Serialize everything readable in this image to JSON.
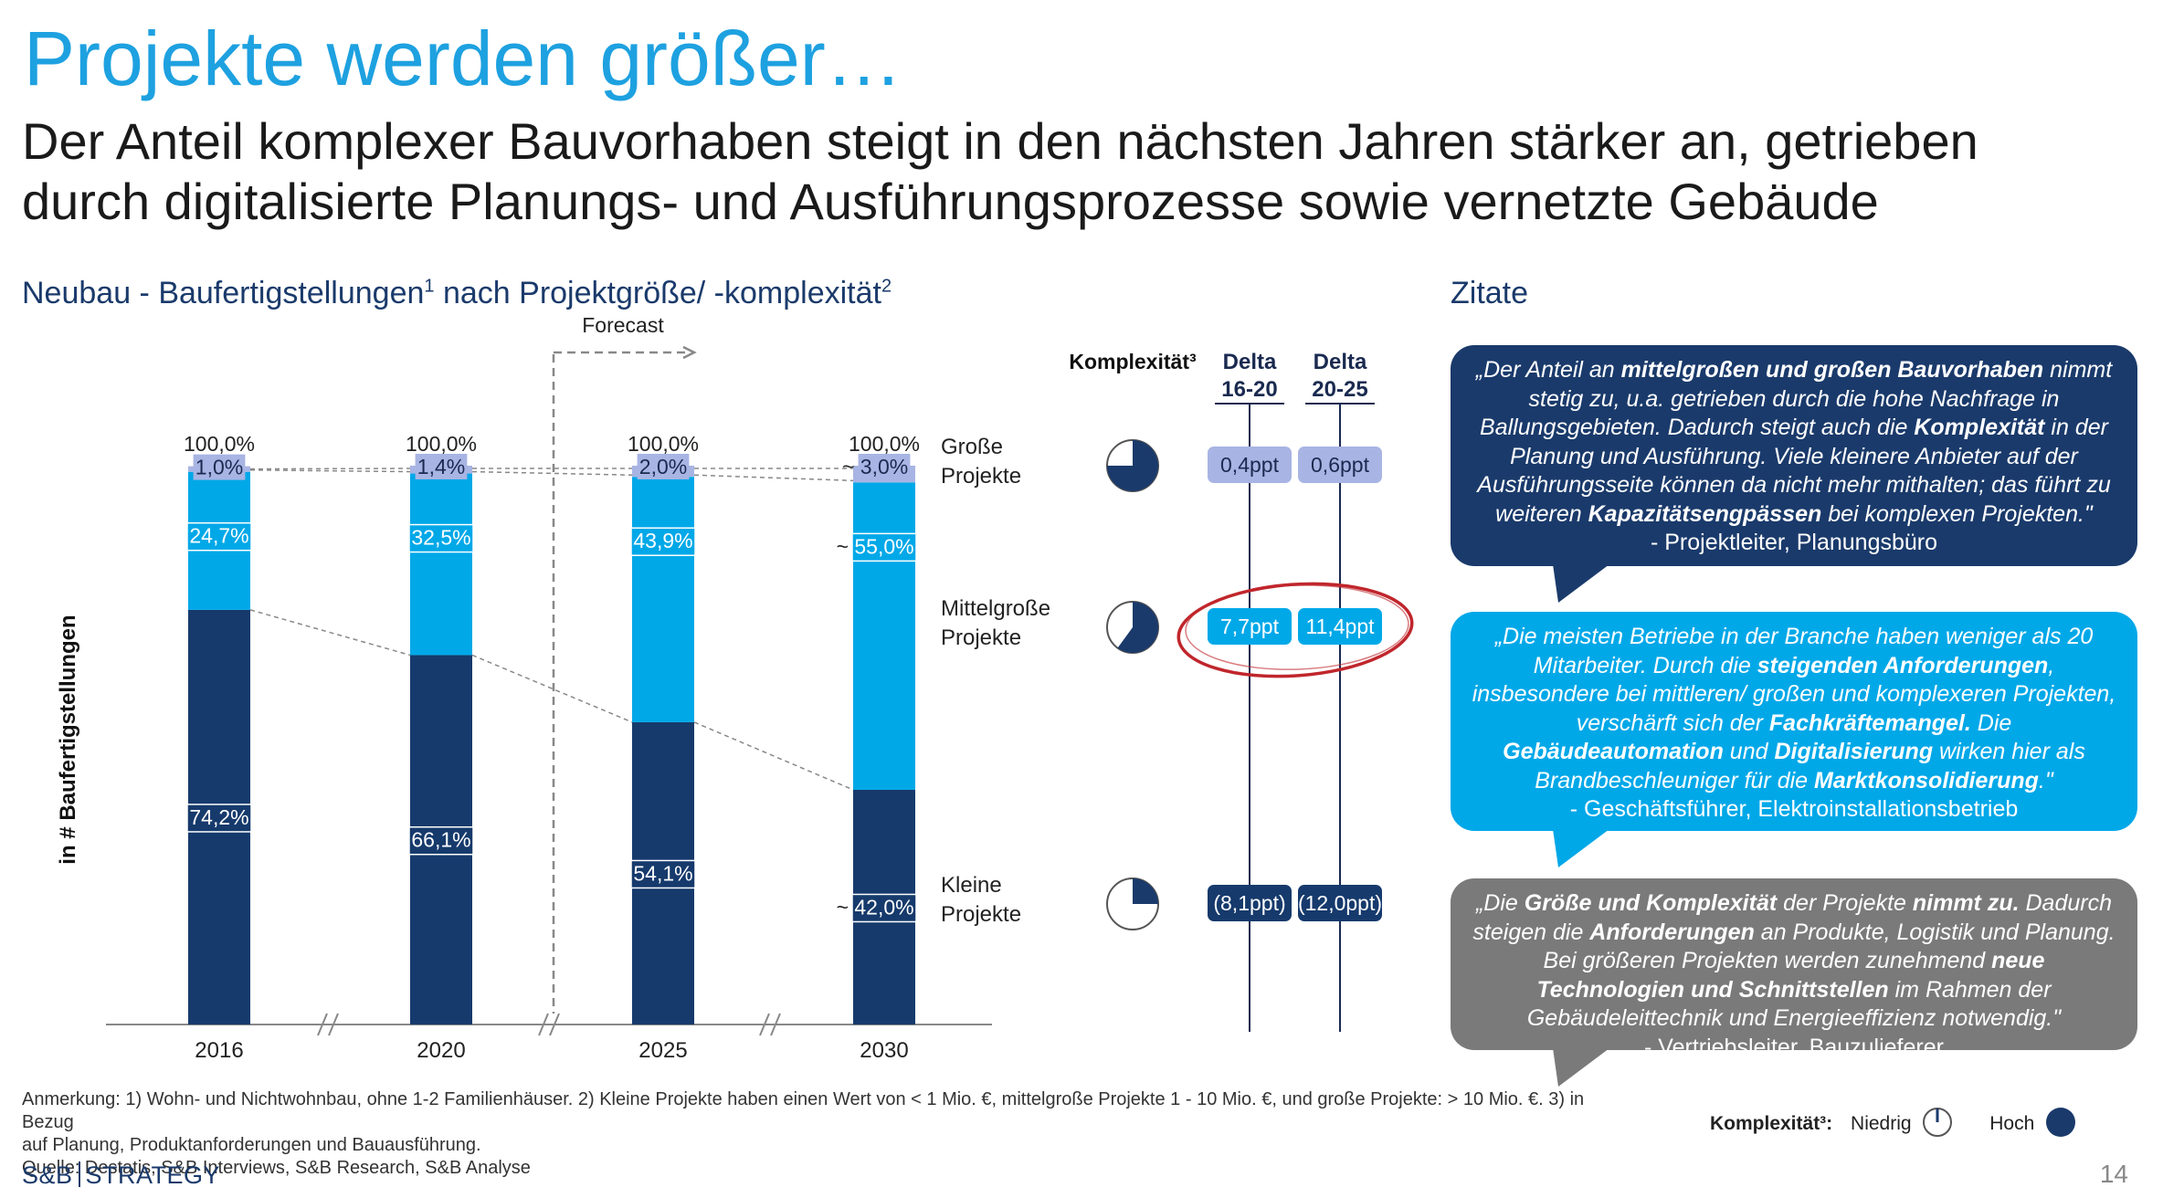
{
  "header": {
    "title": "Projekte werden größer…",
    "subtitle_line1": "Der Anteil komplexer Bauvorhaben steigt in den nächsten Jahren stärker an, getrieben",
    "subtitle_line2": "durch digitalisierte Planungs- und Ausführungsprozesse sowie vernetzte Gebäude"
  },
  "chart_section": {
    "title": "Neubau - Baufertigstellungen",
    "title_sup1": "1",
    "title_mid": " nach Projektgröße/ -komplexität",
    "title_sup2": "2"
  },
  "chart_data": {
    "type": "bar",
    "stacked": true,
    "categories": [
      "2016",
      "2020",
      "2025",
      "2030"
    ],
    "totals": [
      "100,0%",
      "100,0%",
      "100,0%",
      "100,0%"
    ],
    "ylabel": "in # Baufertigstellungen",
    "forecast_label": "Forecast",
    "series": [
      {
        "name": "Kleine Projekte",
        "values": [
          74.2,
          66.1,
          54.1,
          42.0
        ],
        "labels": [
          "74,2%",
          "66,1%",
          "54,1%",
          "~42,0%"
        ],
        "color": "#163a6c"
      },
      {
        "name": "Mittelgroße Projekte",
        "values": [
          24.7,
          32.5,
          43.9,
          55.0
        ],
        "labels": [
          "24,7%",
          "32,5%",
          "43,9%",
          "~55,0%"
        ],
        "color": "#00a8e8"
      },
      {
        "name": "Große Projekte",
        "values": [
          1.0,
          1.4,
          2.0,
          3.0
        ],
        "labels": [
          "1,0%",
          "1,4%",
          "2,0%",
          "~3,0%"
        ],
        "color": "#a8b4e3"
      }
    ],
    "series_labels": [
      {
        "line1": "Große",
        "line2": "Projekte"
      },
      {
        "line1": "Mittelgroße",
        "line2": "Projekte"
      },
      {
        "line1": "Kleine",
        "line2": "Projekte"
      }
    ],
    "complexity_header": "Komplexität³",
    "complexity_fraction": [
      0.75,
      0.6,
      0.25
    ],
    "delta_headers": [
      {
        "line1": "Delta",
        "line2": "16-20"
      },
      {
        "line1": "Delta",
        "line2": "20-25"
      }
    ],
    "deltas": [
      {
        "d1": "0,4ppt",
        "d2": "0,6ppt"
      },
      {
        "d1": "7,7ppt",
        "d2": "11,4ppt"
      },
      {
        "d1": "(8,1ppt)",
        "d2": "(12,0ppt)"
      }
    ]
  },
  "quotes_section": {
    "title": "Zitate"
  },
  "quotes": [
    {
      "segments": [
        {
          "t": "„Der Anteil an ",
          "b": false
        },
        {
          "t": "mittelgroßen und großen Bauvorhaben",
          "b": true
        },
        {
          "t": " nimmt stetig zu, u.a. getrieben durch die hohe Nachfrage in Ballungsgebieten. Dadurch steigt auch die ",
          "b": false
        },
        {
          "t": "Komplexität",
          "b": true
        },
        {
          "t": " in der Planung und Ausführung. Viele kleinere Anbieter auf der Ausführungsseite können da nicht mehr mithalten; das führt zu weiteren ",
          "b": false
        },
        {
          "t": "Kapazitätsengpässen",
          "b": true
        },
        {
          "t": " bei komplexen Projekten.\"",
          "b": false
        }
      ],
      "source": "- Projektleiter, Planungsbüro",
      "color": "#1a3a6b"
    },
    {
      "segments": [
        {
          "t": "„Die meisten Betriebe in der Branche haben weniger als 20 Mitarbeiter. Durch die ",
          "b": false
        },
        {
          "t": "steigenden Anforderungen",
          "b": true
        },
        {
          "t": ", insbesondere bei mittleren/ großen und komplexeren Projekten, verschärft sich der ",
          "b": false
        },
        {
          "t": "Fachkräftemangel.",
          "b": true
        },
        {
          "t": " Die ",
          "b": false
        },
        {
          "t": "Gebäudeautomation",
          "b": true
        },
        {
          "t": " und ",
          "b": false
        },
        {
          "t": "Digitalisierung",
          "b": true
        },
        {
          "t": " wirken hier als Brandbeschleuniger für die ",
          "b": false
        },
        {
          "t": "Marktkonsolidierung",
          "b": true
        },
        {
          "t": ".\"",
          "b": false
        }
      ],
      "source": "- Geschäftsführer, Elektroinstallationsbetrieb",
      "color": "#00a8e8"
    },
    {
      "segments": [
        {
          "t": "„Die ",
          "b": false
        },
        {
          "t": "Größe und Komplexität",
          "b": true
        },
        {
          "t": " der Projekte ",
          "b": false
        },
        {
          "t": "nimmt zu.",
          "b": true
        },
        {
          "t": " Dadurch steigen die ",
          "b": false
        },
        {
          "t": "Anforderungen",
          "b": true
        },
        {
          "t": " an Produkte, Logistik und Planung. Bei größeren Projekten werden zunehmend ",
          "b": false
        },
        {
          "t": "neue Technologien und Schnittstellen",
          "b": true
        },
        {
          "t": " im Rahmen der Gebäudeleittechnik und Energieeffizienz notwendig.\"",
          "b": false
        }
      ],
      "source": "- Vertriebsleiter, Bauzulieferer",
      "color": "#7a7a7a"
    }
  ],
  "legend": {
    "label": "Komplexität³:",
    "low": "Niedrig",
    "high": "Hoch"
  },
  "footnotes": {
    "line1": "Anmerkung: 1) Wohn- und Nichtwohnbau, ohne 1-2 Familienhäuser. 2) Kleine Projekte haben einen Wert von < 1 Mio. €, mittelgroße Projekte 1 - 10 Mio. €, und große Projekte: > 10 Mio. €. 3) in Bezug",
    "line2": "auf Planung, Produktanforderungen und Bauausführung.",
    "line3": "Quelle: Destatis, S&B Interviews, S&B Research, S&B Analyse"
  },
  "brand": {
    "left": "S&B",
    "right": "STRATEGY"
  },
  "page_number": "14"
}
